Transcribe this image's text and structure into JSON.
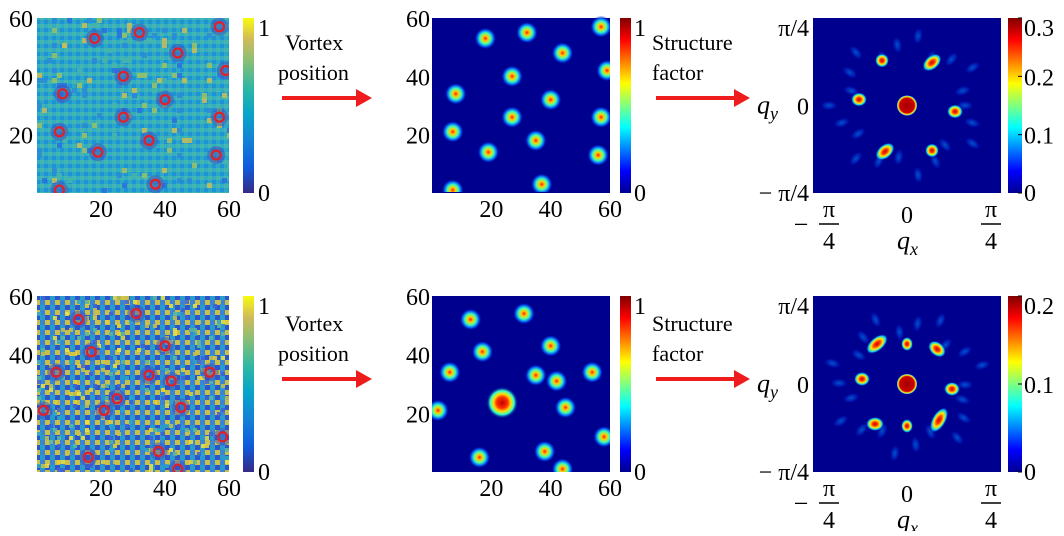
{
  "arrow_labels": {
    "vortex": [
      "Vortex",
      "position"
    ],
    "structure": [
      "Structure",
      "factor"
    ]
  },
  "axis_ticks": {
    "real_space": [
      "0",
      "20",
      "40",
      "60"
    ],
    "q_zero": "0",
    "q_pos": "π/4",
    "q_neg": "− π/4",
    "q_frac_num": "π",
    "q_frac_den": "4",
    "q_frac_minus": "−",
    "qx": "q",
    "qx_sub": "x",
    "qy": "q",
    "qy_sub": "y"
  },
  "colorbars": {
    "panel_a": {
      "min": "0",
      "max": "1"
    },
    "panel_b": {
      "min": "0",
      "max": "1"
    },
    "row1_sf": {
      "ticks": [
        "0",
        "0.1",
        "0.2",
        "0.3"
      ]
    },
    "row2_sf": {
      "ticks": [
        "0",
        "0.1",
        "0.2"
      ]
    }
  },
  "colors": {
    "arrow": "#ee1c1c",
    "vortex_marker": "#e0202a",
    "jet_background": "#00008f",
    "parula_mid": "#2fb0c8"
  },
  "rows": [
    {
      "vortices": [
        [
          18,
          53
        ],
        [
          32,
          55
        ],
        [
          44,
          48
        ],
        [
          57,
          57
        ],
        [
          27,
          40
        ],
        [
          59,
          42
        ],
        [
          8,
          34
        ],
        [
          40,
          32
        ],
        [
          27,
          26
        ],
        [
          57,
          26
        ],
        [
          7,
          21
        ],
        [
          19,
          14
        ],
        [
          35,
          18
        ],
        [
          56,
          13
        ],
        [
          7,
          1
        ],
        [
          37,
          3
        ]
      ],
      "dense": false
    },
    {
      "vortices": [
        [
          13,
          52
        ],
        [
          31,
          54
        ],
        [
          42,
          31
        ],
        [
          17,
          41
        ],
        [
          40,
          43
        ],
        [
          6,
          34
        ],
        [
          35,
          33
        ],
        [
          54,
          34
        ],
        [
          25,
          25
        ],
        [
          21,
          21
        ],
        [
          45,
          22
        ],
        [
          2,
          21
        ],
        [
          16,
          5
        ],
        [
          38,
          7
        ],
        [
          58,
          12
        ],
        [
          44,
          1
        ]
      ],
      "dense": true
    }
  ]
}
